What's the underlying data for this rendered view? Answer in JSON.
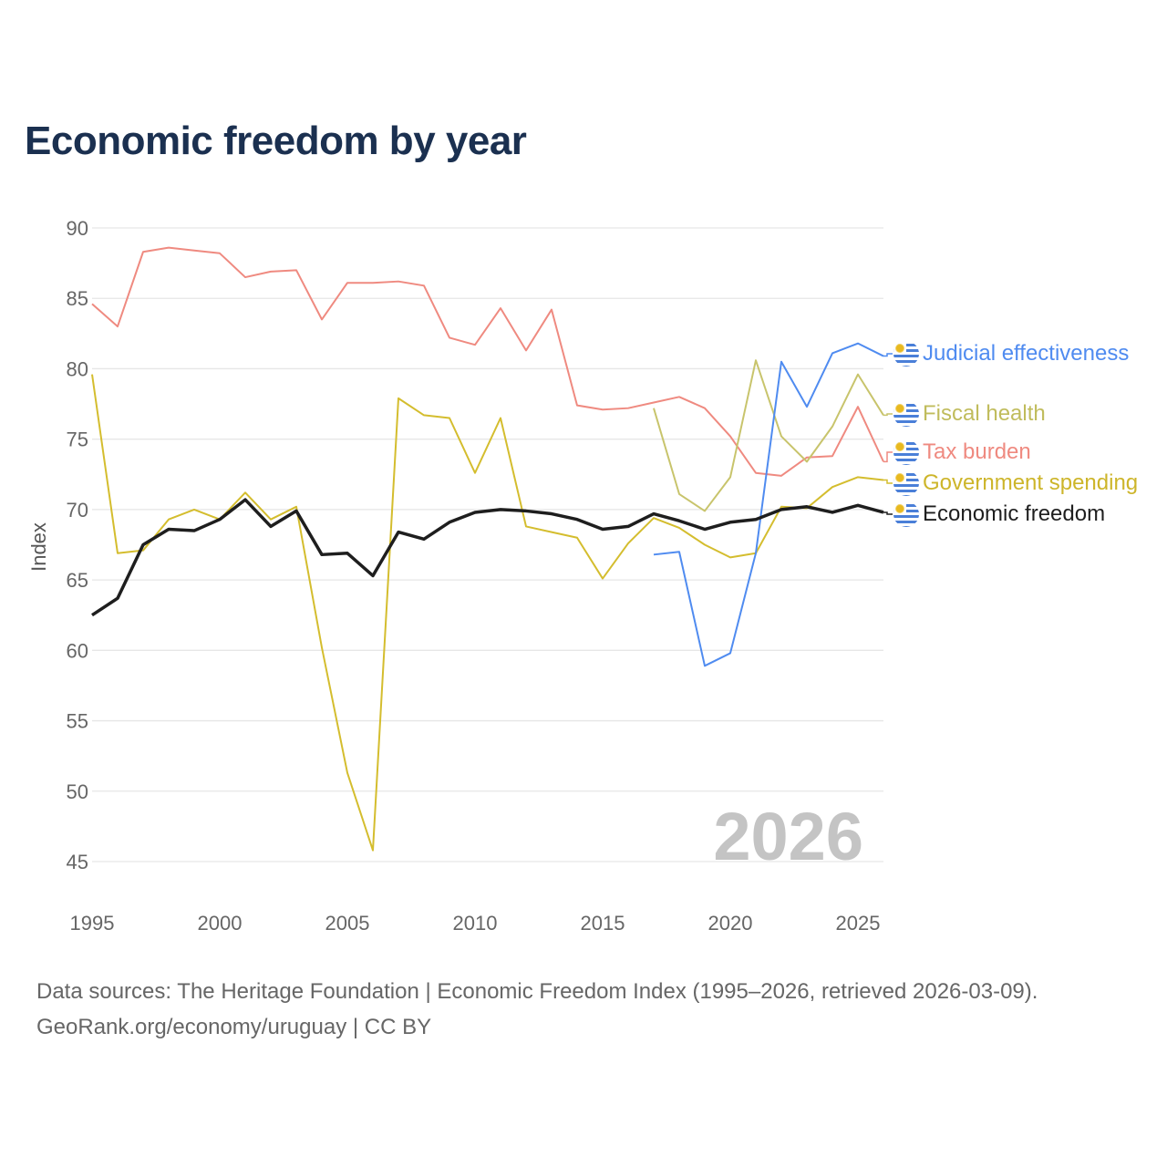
{
  "title": "Economic freedom by year",
  "year_watermark": "2026",
  "source_line1": "Data sources: The Heritage Foundation | Economic Freedom Index (1995–2026, retrieved 2026-03-09).",
  "source_line2": "GeoRank.org/economy/uruguay | CC BY",
  "chart_data": {
    "type": "line",
    "title": "Economic freedom by year",
    "xlabel": "",
    "ylabel": "Index",
    "xlim": [
      1995,
      2026
    ],
    "ylim": [
      45,
      90
    ],
    "xticks": [
      1995,
      2000,
      2005,
      2010,
      2015,
      2020,
      2025
    ],
    "yticks": [
      45,
      50,
      55,
      60,
      65,
      70,
      75,
      80,
      85,
      90
    ],
    "grid": true,
    "legend": "right (end labels)",
    "series": [
      {
        "name": "Tax burden",
        "color": "#ef8a80",
        "width": 2,
        "start": 1995,
        "values": [
          84.6,
          83.0,
          88.3,
          88.6,
          88.4,
          88.2,
          86.5,
          86.9,
          87.0,
          83.5,
          86.1,
          86.1,
          86.2,
          85.9,
          82.2,
          81.7,
          84.3,
          81.3,
          84.2,
          77.4,
          77.1,
          77.2,
          77.6,
          78.0,
          77.2,
          75.2,
          72.6,
          72.4,
          73.7,
          73.8,
          77.3,
          73.4
        ]
      },
      {
        "name": "Government spending",
        "color": "#d4bd2e",
        "width": 2,
        "start": 1995,
        "values": [
          79.6,
          66.9,
          67.1,
          69.3,
          70.0,
          69.3,
          71.2,
          69.3,
          70.2,
          60.2,
          51.3,
          45.8,
          77.9,
          76.7,
          76.5,
          72.6,
          76.5,
          68.8,
          68.4,
          68.0,
          65.1,
          67.6,
          69.4,
          68.7,
          67.5,
          66.6,
          66.9,
          70.2,
          70.1,
          71.6,
          72.3,
          72.1
        ]
      },
      {
        "name": "Fiscal health",
        "color": "#c8c46c",
        "width": 2,
        "start": 2017,
        "values": [
          77.2,
          71.1,
          69.9,
          72.3,
          80.6,
          75.2,
          73.4,
          75.9,
          79.6,
          76.7
        ]
      },
      {
        "name": "Judicial effectiveness",
        "color": "#4f8bf0",
        "width": 2,
        "start": 2017,
        "values": [
          66.8,
          67.0,
          58.9,
          59.8,
          66.9,
          80.5,
          77.3,
          81.1,
          81.8,
          80.9
        ]
      },
      {
        "name": "Economic freedom",
        "color": "#1e1e1e",
        "width": 3.5,
        "start": 1995,
        "values": [
          62.5,
          63.7,
          67.5,
          68.6,
          68.5,
          69.3,
          70.7,
          68.8,
          69.9,
          66.8,
          66.9,
          65.3,
          68.4,
          67.9,
          69.1,
          69.8,
          70.0,
          69.9,
          69.7,
          69.3,
          68.6,
          68.8,
          69.7,
          69.2,
          68.6,
          69.1,
          69.3,
          70.0,
          70.2,
          69.8,
          70.3,
          69.8
        ]
      }
    ]
  },
  "labels": [
    {
      "text": "Judicial effectiveness",
      "color": "#4f8bf0",
      "icon": "uruguay-flag-icon"
    },
    {
      "text": "Fiscal health",
      "color": "#c0bc5c",
      "icon": "uruguay-flag-icon"
    },
    {
      "text": "Tax burden",
      "color": "#ef8a80",
      "icon": "uruguay-flag-icon"
    },
    {
      "text": "Government spending",
      "color": "#cdb52a",
      "icon": "uruguay-flag-icon"
    },
    {
      "text": "Economic freedom",
      "color": "#1e1e1e",
      "icon": "uruguay-flag-icon"
    }
  ]
}
